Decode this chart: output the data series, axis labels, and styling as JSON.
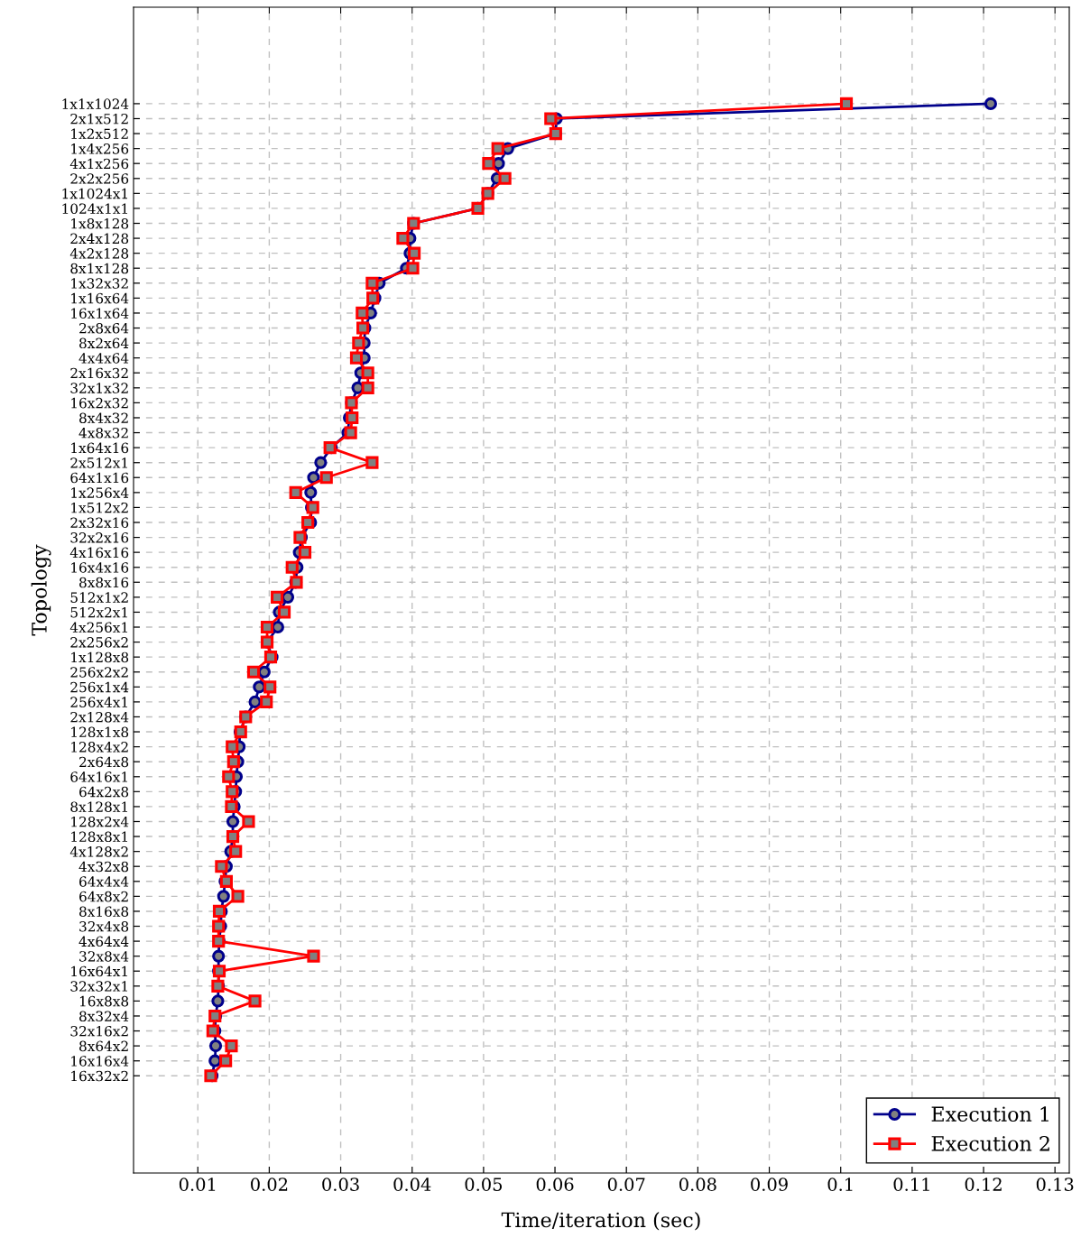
{
  "chart_data": {
    "type": "line",
    "orientation": "horizontal",
    "xlabel": "Time/iteration (sec)",
    "ylabel": "Topology",
    "categories": [
      "1x1x1024",
      "2x1x512",
      "1x2x512",
      "1x4x256",
      "4x1x256",
      "2x2x256",
      "1x1024x1",
      "1024x1x1",
      "1x8x128",
      "2x4x128",
      "4x2x128",
      "8x1x128",
      "1x32x32",
      "1x16x64",
      "16x1x64",
      "2x8x64",
      "8x2x64",
      "4x4x64",
      "2x16x32",
      "32x1x32",
      "16x2x32",
      "8x4x32",
      "4x8x32",
      "1x64x16",
      "2x512x1",
      "64x1x16",
      "1x256x4",
      "1x512x2",
      "2x32x16",
      "32x2x16",
      "4x16x16",
      "16x4x16",
      "8x8x16",
      "512x1x2",
      "512x2x1",
      "4x256x1",
      "2x256x2",
      "1x128x8",
      "256x2x2",
      "256x1x4",
      "256x4x1",
      "2x128x4",
      "128x1x8",
      "128x4x2",
      "2x64x8",
      "64x16x1",
      "64x2x8",
      "8x128x1",
      "128x2x4",
      "128x8x1",
      "4x128x2",
      "4x32x8",
      "64x4x4",
      "64x8x2",
      "8x16x8",
      "32x4x8",
      "4x64x4",
      "32x8x4",
      "16x64x1",
      "32x32x1",
      "16x8x8",
      "8x32x4",
      "32x16x2",
      "8x64x2",
      "16x16x4",
      "16x32x2"
    ],
    "series": [
      {
        "name": "Execution 1",
        "color": "#00008b",
        "marker": "circle",
        "values": [
          0.121,
          0.0602,
          0.0601,
          0.0534,
          0.0521,
          0.0519,
          0.0506,
          0.0492,
          0.0402,
          0.0397,
          0.0397,
          0.0392,
          0.0354,
          0.0348,
          0.0342,
          0.0334,
          0.0333,
          0.0333,
          0.0328,
          0.0324,
          0.0315,
          0.0312,
          0.031,
          0.0287,
          0.0272,
          0.0262,
          0.0258,
          0.0259,
          0.0258,
          0.0245,
          0.0242,
          0.0239,
          0.0237,
          0.0226,
          0.0214,
          0.0212,
          0.0197,
          0.0204,
          0.0193,
          0.0186,
          0.018,
          0.0167,
          0.0159,
          0.0158,
          0.0156,
          0.0154,
          0.0153,
          0.0151,
          0.0149,
          0.0149,
          0.0146,
          0.014,
          0.0138,
          0.0136,
          0.0133,
          0.0132,
          0.013,
          0.0129,
          0.0129,
          0.0129,
          0.0128,
          0.0125,
          0.0124,
          0.0125,
          0.0124,
          0.012
        ]
      },
      {
        "name": "Execution 2",
        "color": "#ff0000",
        "marker": "square",
        "values": [
          0.1008,
          0.0594,
          0.0601,
          0.052,
          0.0507,
          0.053,
          0.0506,
          0.0492,
          0.0402,
          0.0387,
          0.0403,
          0.0401,
          0.0344,
          0.0345,
          0.033,
          0.0331,
          0.0325,
          0.0322,
          0.0338,
          0.0338,
          0.0315,
          0.0316,
          0.0314,
          0.0285,
          0.0344,
          0.028,
          0.0237,
          0.0261,
          0.0254,
          0.0243,
          0.025,
          0.0232,
          0.0238,
          0.0211,
          0.0221,
          0.0197,
          0.0197,
          0.0202,
          0.0178,
          0.0201,
          0.0196,
          0.0167,
          0.016,
          0.0148,
          0.015,
          0.0143,
          0.0148,
          0.0147,
          0.0171,
          0.0149,
          0.0153,
          0.0133,
          0.014,
          0.0156,
          0.013,
          0.0129,
          0.0129,
          0.0262,
          0.013,
          0.0128,
          0.018,
          0.0124,
          0.0121,
          0.0147,
          0.0139,
          0.0118
        ]
      }
    ],
    "xlim": [
      0.001,
      0.132
    ],
    "xticks": [
      0.01,
      0.02,
      0.03,
      0.04,
      0.05,
      0.06,
      0.07,
      0.08,
      0.09,
      0.1,
      0.11,
      0.12,
      0.13
    ],
    "grid": true,
    "legend": "bottom right",
    "line_style": "solid"
  }
}
